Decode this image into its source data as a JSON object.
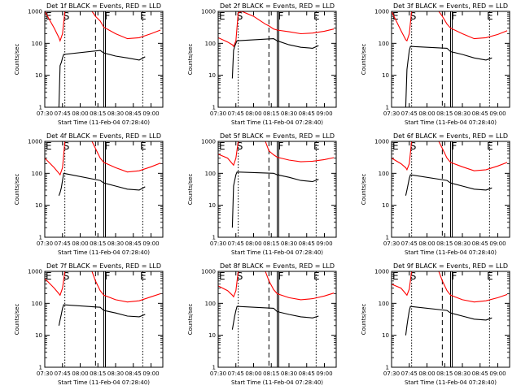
{
  "chart_data": [
    {
      "type": "line",
      "title": "Det 1f BLACK = Events, RED = LLD",
      "xlabel": "Start Time (11-Feb-04 07:28:40)",
      "ylabel": "Counts/sec",
      "x_ticks": [
        "07:30",
        "07:45",
        "08:00",
        "08:15",
        "08:30",
        "08:45",
        "09:00"
      ],
      "y_ticks": [
        "1",
        "10",
        "100",
        "1000"
      ],
      "ylim": [
        1,
        1000
      ],
      "y_scale": "log",
      "markers": [
        {
          "label": "E",
          "x": "07:30"
        },
        {
          "label": "S",
          "x": "07:45"
        },
        {
          "label": "F",
          "x": "08:20"
        },
        {
          "label": "E",
          "x": "08:50"
        }
      ],
      "series": [
        {
          "name": "LLD",
          "color": "#ff0000",
          "x": [
            "07:30",
            "07:38",
            "07:42",
            "07:43",
            "07:45",
            "07:47",
            "07:50",
            "08:00",
            "08:10",
            "08:13",
            "08:17",
            "08:20",
            "08:30",
            "08:40",
            "08:50",
            "09:00",
            "09:08"
          ],
          "y": [
            1000,
            300,
            150,
            120,
            200,
            1000,
            1000,
            1000,
            1000,
            700,
            500,
            320,
            200,
            140,
            150,
            200,
            260
          ]
        },
        {
          "name": "Events",
          "color": "#000000",
          "x": [
            "07:42",
            "07:43",
            "07:44",
            "07:45",
            "07:46",
            "08:17",
            "08:20",
            "08:30",
            "08:40",
            "08:50",
            "08:55"
          ],
          "y": [
            1,
            20,
            25,
            35,
            45,
            60,
            50,
            40,
            35,
            30,
            38
          ]
        }
      ]
    },
    {
      "type": "line",
      "title": "Det 2f BLACK = Events, RED = LLD",
      "xlabel": "Start Time (11-Feb-04 07:28:40)",
      "ylabel": "Counts/sec",
      "x_ticks": [
        "07:30",
        "07:45",
        "08:00",
        "08:15",
        "08:30",
        "08:45",
        "09:00"
      ],
      "y_ticks": [
        "1",
        "10",
        "100",
        "1000"
      ],
      "ylim": [
        1,
        1000
      ],
      "y_scale": "log",
      "markers": [
        {
          "label": "E",
          "x": "07:30"
        },
        {
          "label": "S",
          "x": "07:45"
        },
        {
          "label": "F",
          "x": "08:20"
        },
        {
          "label": "E",
          "x": "08:50"
        }
      ],
      "series": [
        {
          "name": "LLD",
          "color": "#ff0000",
          "x": [
            "07:30",
            "07:38",
            "07:42",
            "07:43",
            "07:45",
            "07:47",
            "07:50",
            "08:00",
            "08:10",
            "08:13",
            "08:17",
            "08:20",
            "08:30",
            "08:40",
            "08:50",
            "09:00",
            "09:08"
          ],
          "y": [
            150,
            110,
            90,
            80,
            120,
            900,
            1000,
            700,
            400,
            350,
            280,
            260,
            230,
            200,
            210,
            240,
            280
          ]
        },
        {
          "name": "Events",
          "color": "#000000",
          "x": [
            "07:42",
            "07:43",
            "07:44",
            "07:45",
            "07:46",
            "08:17",
            "08:20",
            "08:30",
            "08:40",
            "08:50",
            "08:55"
          ],
          "y": [
            8,
            60,
            80,
            100,
            120,
            140,
            120,
            90,
            75,
            70,
            85
          ]
        }
      ]
    },
    {
      "type": "line",
      "title": "Det 3f BLACK = Events, RED = LLD",
      "xlabel": "Start Time (11-Feb-04 07:28:40)",
      "ylabel": "Counts/sec",
      "x_ticks": [
        "07:30",
        "07:45",
        "08:00",
        "08:15",
        "08:30",
        "08:45",
        "09:00"
      ],
      "y_ticks": [
        "1",
        "10",
        "100",
        "1000"
      ],
      "ylim": [
        1,
        1000
      ],
      "y_scale": "log",
      "markers": [
        {
          "label": "E",
          "x": "07:30"
        },
        {
          "label": "S",
          "x": "07:45"
        },
        {
          "label": "F",
          "x": "08:20"
        },
        {
          "label": "E",
          "x": "08:50"
        }
      ],
      "series": [
        {
          "name": "LLD",
          "color": "#ff0000",
          "x": [
            "07:30",
            "07:38",
            "07:42",
            "07:43",
            "07:45",
            "07:47",
            "07:50",
            "08:00",
            "08:10",
            "08:13",
            "08:17",
            "08:20",
            "08:30",
            "08:40",
            "08:50",
            "09:00",
            "09:08"
          ],
          "y": [
            1000,
            250,
            130,
            120,
            200,
            1000,
            1000,
            1000,
            1000,
            700,
            400,
            300,
            200,
            140,
            150,
            190,
            250
          ]
        },
        {
          "name": "Events",
          "color": "#000000",
          "x": [
            "07:42",
            "07:43",
            "07:44",
            "07:45",
            "07:46",
            "08:17",
            "08:20",
            "08:30",
            "08:40",
            "08:50",
            "08:55"
          ],
          "y": [
            1,
            15,
            30,
            60,
            80,
            70,
            55,
            45,
            35,
            30,
            35
          ]
        }
      ]
    },
    {
      "type": "line",
      "title": "Det 4f BLACK = Events, RED = LLD",
      "xlabel": "Start Time (11-Feb-04 07:28:40)",
      "ylabel": "Counts/sec",
      "x_ticks": [
        "07:30",
        "07:45",
        "08:00",
        "08:15",
        "08:30",
        "08:45",
        "09:00"
      ],
      "y_ticks": [
        "1",
        "10",
        "100",
        "1000"
      ],
      "ylim": [
        1,
        1000
      ],
      "y_scale": "log",
      "markers": [
        {
          "label": "E",
          "x": "07:30"
        },
        {
          "label": "S",
          "x": "07:45"
        },
        {
          "label": "F",
          "x": "08:20"
        },
        {
          "label": "E",
          "x": "08:50"
        }
      ],
      "series": [
        {
          "name": "LLD",
          "color": "#ff0000",
          "x": [
            "07:30",
            "07:38",
            "07:42",
            "07:43",
            "07:45",
            "07:47",
            "07:50",
            "08:00",
            "08:10",
            "08:13",
            "08:17",
            "08:20",
            "08:30",
            "08:40",
            "08:50",
            "09:00",
            "09:08"
          ],
          "y": [
            300,
            150,
            100,
            90,
            150,
            1000,
            1000,
            1000,
            1000,
            600,
            300,
            220,
            150,
            110,
            120,
            160,
            210
          ]
        },
        {
          "name": "Events",
          "color": "#000000",
          "x": [
            "07:42",
            "07:43",
            "07:44",
            "07:45",
            "07:46",
            "08:17",
            "08:20",
            "08:30",
            "08:40",
            "08:50",
            "08:55"
          ],
          "y": [
            20,
            25,
            35,
            60,
            100,
            60,
            50,
            40,
            32,
            30,
            38
          ]
        }
      ]
    },
    {
      "type": "line",
      "title": "Det 5f BLACK = Events, RED = LLD",
      "xlabel": "Start Time (11-Feb-04 07:28:40)",
      "ylabel": "Counts/sec",
      "x_ticks": [
        "07:30",
        "07:45",
        "08:00",
        "08:15",
        "08:30",
        "08:45",
        "09:00"
      ],
      "y_ticks": [
        "1",
        "10",
        "100",
        "1000"
      ],
      "ylim": [
        1,
        1000
      ],
      "y_scale": "log",
      "markers": [
        {
          "label": "E",
          "x": "07:30"
        },
        {
          "label": "S",
          "x": "07:45"
        },
        {
          "label": "F",
          "x": "08:20"
        },
        {
          "label": "E",
          "x": "08:50"
        }
      ],
      "series": [
        {
          "name": "LLD",
          "color": "#ff0000",
          "x": [
            "07:30",
            "07:38",
            "07:42",
            "07:43",
            "07:45",
            "07:47",
            "07:50",
            "08:00",
            "08:10",
            "08:13",
            "08:17",
            "08:20",
            "08:30",
            "08:40",
            "08:50",
            "09:00",
            "09:08"
          ],
          "y": [
            400,
            300,
            200,
            180,
            300,
            1000,
            1000,
            1000,
            1000,
            500,
            380,
            320,
            260,
            230,
            240,
            270,
            310
          ]
        },
        {
          "name": "Events",
          "color": "#000000",
          "x": [
            "07:42",
            "07:43",
            "07:44",
            "07:45",
            "07:46",
            "08:17",
            "08:20",
            "08:30",
            "08:40",
            "08:50",
            "08:55"
          ],
          "y": [
            2,
            40,
            60,
            90,
            110,
            100,
            90,
            75,
            60,
            55,
            65
          ]
        }
      ]
    },
    {
      "type": "line",
      "title": "Det 6f BLACK = Events, RED = LLD",
      "xlabel": "Start Time (11-Feb-04 07:28:40)",
      "ylabel": "Counts/sec",
      "x_ticks": [
        "07:30",
        "07:45",
        "08:00",
        "08:15",
        "08:30",
        "08:45",
        "09:00"
      ],
      "y_ticks": [
        "1",
        "10",
        "100",
        "1000"
      ],
      "ylim": [
        1,
        1000
      ],
      "y_scale": "log",
      "markers": [
        {
          "label": "E",
          "x": "07:30"
        },
        {
          "label": "S",
          "x": "07:45"
        },
        {
          "label": "F",
          "x": "08:20"
        },
        {
          "label": "E",
          "x": "08:50"
        }
      ],
      "series": [
        {
          "name": "LLD",
          "color": "#ff0000",
          "x": [
            "07:30",
            "07:38",
            "07:42",
            "07:43",
            "07:45",
            "07:47",
            "07:50",
            "08:00",
            "08:10",
            "08:13",
            "08:17",
            "08:20",
            "08:30",
            "08:40",
            "08:50",
            "09:00",
            "09:08"
          ],
          "y": [
            300,
            200,
            150,
            130,
            200,
            1000,
            1000,
            1000,
            1000,
            600,
            300,
            220,
            160,
            120,
            130,
            170,
            220
          ]
        },
        {
          "name": "Events",
          "color": "#000000",
          "x": [
            "07:42",
            "07:43",
            "07:44",
            "07:45",
            "07:46",
            "08:17",
            "08:20",
            "08:30",
            "08:40",
            "08:50",
            "08:55"
          ],
          "y": [
            20,
            30,
            45,
            70,
            90,
            60,
            50,
            40,
            32,
            30,
            35
          ]
        }
      ]
    },
    {
      "type": "line",
      "title": "Det 7f BLACK = Events, RED = LLD",
      "xlabel": "Start Time (11-Feb-04 07:28:40)",
      "ylabel": "Counts/sec",
      "x_ticks": [
        "07:30",
        "07:45",
        "08:00",
        "08:15",
        "08:30",
        "08:45",
        "09:00"
      ],
      "y_ticks": [
        "1",
        "10",
        "100",
        "1000"
      ],
      "ylim": [
        1,
        1000
      ],
      "y_scale": "log",
      "markers": [
        {
          "label": "E",
          "x": "07:30"
        },
        {
          "label": "S",
          "x": "07:45"
        },
        {
          "label": "F",
          "x": "08:20"
        },
        {
          "label": "E",
          "x": "08:50"
        }
      ],
      "series": [
        {
          "name": "LLD",
          "color": "#ff0000",
          "x": [
            "07:30",
            "07:38",
            "07:42",
            "07:43",
            "07:45",
            "07:47",
            "07:50",
            "08:00",
            "08:10",
            "08:13",
            "08:17",
            "08:20",
            "08:30",
            "08:40",
            "08:50",
            "09:00",
            "09:08"
          ],
          "y": [
            600,
            300,
            200,
            180,
            300,
            1000,
            1000,
            1000,
            1000,
            500,
            250,
            180,
            130,
            110,
            120,
            160,
            200
          ]
        },
        {
          "name": "Events",
          "color": "#000000",
          "x": [
            "07:42",
            "07:43",
            "07:44",
            "07:45",
            "07:46",
            "08:17",
            "08:20",
            "08:30",
            "08:40",
            "08:50",
            "08:55"
          ],
          "y": [
            20,
            30,
            45,
            70,
            90,
            75,
            60,
            50,
            40,
            38,
            45
          ]
        }
      ]
    },
    {
      "type": "line",
      "title": "Det 8f BLACK = Events, RED = LLD",
      "xlabel": "Start Time (11-Feb-04 07:28:40)",
      "ylabel": "Counts/sec",
      "x_ticks": [
        "07:30",
        "07:45",
        "08:00",
        "08:15",
        "08:30",
        "08:45",
        "09:00"
      ],
      "y_ticks": [
        "1",
        "10",
        "100",
        "1000"
      ],
      "ylim": [
        1,
        1000
      ],
      "y_scale": "log",
      "markers": [
        {
          "label": "E",
          "x": "07:30"
        },
        {
          "label": "S",
          "x": "07:45"
        },
        {
          "label": "F",
          "x": "08:20"
        },
        {
          "label": "E",
          "x": "08:50"
        }
      ],
      "series": [
        {
          "name": "LLD",
          "color": "#ff0000",
          "x": [
            "07:30",
            "07:38",
            "07:42",
            "07:43",
            "07:45",
            "07:47",
            "07:50",
            "08:00",
            "08:10",
            "08:13",
            "08:17",
            "08:20",
            "08:30",
            "08:40",
            "08:50",
            "09:00",
            "09:08"
          ],
          "y": [
            350,
            250,
            180,
            160,
            250,
            1000,
            1000,
            1000,
            1000,
            500,
            270,
            200,
            150,
            130,
            140,
            170,
            210
          ]
        },
        {
          "name": "Events",
          "color": "#000000",
          "x": [
            "07:42",
            "07:43",
            "07:44",
            "07:45",
            "07:46",
            "08:17",
            "08:20",
            "08:30",
            "08:40",
            "08:50",
            "08:55"
          ],
          "y": [
            15,
            25,
            40,
            60,
            80,
            70,
            55,
            45,
            38,
            35,
            40
          ]
        }
      ]
    },
    {
      "type": "line",
      "title": "Det 9f BLACK = Events, RED = LLD",
      "xlabel": "Start Time (11-Feb-04 07:28:40)",
      "ylabel": "Counts/sec",
      "x_ticks": [
        "07:30",
        "07:45",
        "08:00",
        "08:15",
        "08:30",
        "08:45",
        "09:00"
      ],
      "y_ticks": [
        "1",
        "10",
        "100",
        "1000"
      ],
      "ylim": [
        1,
        1000
      ],
      "y_scale": "log",
      "markers": [
        {
          "label": "E",
          "x": "07:30"
        },
        {
          "label": "S",
          "x": "07:45"
        },
        {
          "label": "F",
          "x": "08:20"
        },
        {
          "label": "E",
          "x": "08:50"
        }
      ],
      "series": [
        {
          "name": "LLD",
          "color": "#ff0000",
          "x": [
            "07:30",
            "07:38",
            "07:42",
            "07:43",
            "07:45",
            "07:47",
            "07:50",
            "08:00",
            "08:10",
            "08:13",
            "08:17",
            "08:20",
            "08:30",
            "08:40",
            "08:50",
            "09:00",
            "09:08"
          ],
          "y": [
            400,
            300,
            200,
            180,
            280,
            1000,
            1000,
            1000,
            1000,
            500,
            250,
            180,
            130,
            110,
            120,
            150,
            190
          ]
        },
        {
          "name": "Events",
          "color": "#000000",
          "x": [
            "07:42",
            "07:43",
            "07:44",
            "07:45",
            "07:46",
            "08:17",
            "08:20",
            "08:30",
            "08:40",
            "08:50",
            "08:55"
          ],
          "y": [
            10,
            20,
            35,
            60,
            80,
            60,
            50,
            40,
            32,
            30,
            35
          ]
        }
      ]
    }
  ]
}
